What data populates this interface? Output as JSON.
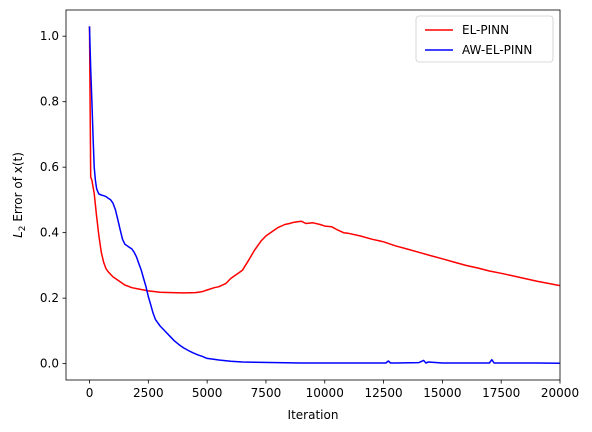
{
  "chart_data": {
    "type": "line",
    "title": "",
    "xlabel": "Iteration",
    "ylabel": "L2 Error of x(t)",
    "ylabel_parts": {
      "sym": "L",
      "sub": "2",
      "rest": " Error of x(t)"
    },
    "xlim": [
      -1000,
      20000
    ],
    "ylim": [
      -0.05,
      1.08
    ],
    "xticks": [
      0,
      2500,
      5000,
      7500,
      10000,
      12500,
      15000,
      17500,
      20000
    ],
    "xtick_labels": [
      "0",
      "2500",
      "5000",
      "7500",
      "10000",
      "12500",
      "15000",
      "17500",
      "20000"
    ],
    "yticks": [
      0.0,
      0.2,
      0.4,
      0.6,
      0.8,
      1.0
    ],
    "ytick_labels": [
      "0.0",
      "0.2",
      "0.4",
      "0.6",
      "0.8",
      "1.0"
    ],
    "grid": false,
    "legend_position": "top-right",
    "series": [
      {
        "name": "EL-PINN",
        "color": "#ff0000",
        "x": [
          0,
          50,
          100,
          200,
          300,
          400,
          500,
          600,
          700,
          800,
          1000,
          1200,
          1500,
          1800,
          2000,
          2500,
          3000,
          3500,
          4000,
          4500,
          4800,
          5000,
          5300,
          5500,
          5800,
          6000,
          6300,
          6500,
          6800,
          7000,
          7300,
          7500,
          7800,
          8000,
          8300,
          8500,
          8700,
          9000,
          9200,
          9500,
          9800,
          10000,
          10300,
          10500,
          10800,
          11000,
          11500,
          12000,
          12500,
          13000,
          13500,
          14000,
          14500,
          15000,
          15500,
          16000,
          16500,
          17000,
          17500,
          18000,
          18500,
          19000,
          19500,
          20000
        ],
        "y": [
          1.03,
          0.57,
          0.56,
          0.52,
          0.45,
          0.39,
          0.34,
          0.31,
          0.29,
          0.28,
          0.265,
          0.255,
          0.24,
          0.232,
          0.229,
          0.222,
          0.218,
          0.217,
          0.216,
          0.217,
          0.22,
          0.225,
          0.232,
          0.235,
          0.245,
          0.26,
          0.275,
          0.285,
          0.32,
          0.345,
          0.375,
          0.39,
          0.405,
          0.415,
          0.425,
          0.428,
          0.432,
          0.435,
          0.428,
          0.43,
          0.425,
          0.42,
          0.418,
          0.41,
          0.4,
          0.398,
          0.39,
          0.38,
          0.372,
          0.36,
          0.35,
          0.34,
          0.33,
          0.32,
          0.31,
          0.3,
          0.292,
          0.283,
          0.276,
          0.268,
          0.26,
          0.252,
          0.245,
          0.238
        ]
      },
      {
        "name": "AW-EL-PINN",
        "color": "#0000ff",
        "x": [
          0,
          50,
          100,
          150,
          200,
          250,
          300,
          350,
          400,
          500,
          600,
          700,
          800,
          900,
          1000,
          1100,
          1200,
          1300,
          1400,
          1500,
          1600,
          1700,
          1800,
          1900,
          2000,
          2100,
          2200,
          2300,
          2400,
          2500,
          2600,
          2700,
          2800,
          2900,
          3000,
          3200,
          3400,
          3600,
          3800,
          4000,
          4200,
          4400,
          4600,
          4800,
          5000,
          5200,
          5500,
          6000,
          6500,
          7000,
          8000,
          9000,
          10000,
          11000,
          12000,
          12600,
          12700,
          12800,
          13000,
          14000,
          14200,
          14300,
          14400,
          15000,
          16000,
          17000,
          17100,
          17200,
          18000,
          19000,
          20000
        ],
        "y": [
          1.03,
          0.9,
          0.8,
          0.69,
          0.6,
          0.56,
          0.535,
          0.525,
          0.518,
          0.515,
          0.513,
          0.51,
          0.505,
          0.5,
          0.49,
          0.47,
          0.44,
          0.41,
          0.38,
          0.365,
          0.36,
          0.355,
          0.35,
          0.34,
          0.325,
          0.305,
          0.285,
          0.26,
          0.235,
          0.205,
          0.18,
          0.155,
          0.135,
          0.125,
          0.115,
          0.1,
          0.085,
          0.07,
          0.058,
          0.048,
          0.04,
          0.033,
          0.027,
          0.022,
          0.016,
          0.014,
          0.011,
          0.007,
          0.005,
          0.004,
          0.003,
          0.002,
          0.002,
          0.002,
          0.002,
          0.002,
          0.008,
          0.002,
          0.002,
          0.003,
          0.01,
          0.002,
          0.005,
          0.002,
          0.002,
          0.002,
          0.012,
          0.002,
          0.002,
          0.002,
          0.001
        ]
      }
    ]
  }
}
